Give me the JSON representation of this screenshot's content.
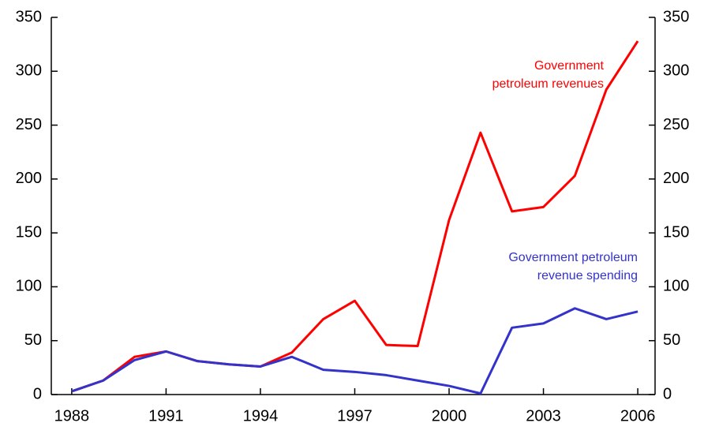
{
  "chart_data": {
    "type": "line",
    "x": [
      1988,
      1989,
      1990,
      1991,
      1992,
      1993,
      1994,
      1995,
      1996,
      1997,
      1998,
      1999,
      2000,
      2001,
      2002,
      2003,
      2004,
      2005,
      2006
    ],
    "series": [
      {
        "name": "Government petroleum revenues",
        "color": "#ff0000",
        "values": [
          3,
          13,
          35,
          40,
          31,
          28,
          26,
          39,
          70,
          87,
          46,
          45,
          162,
          243,
          170,
          174,
          203,
          283,
          328
        ]
      },
      {
        "name": "Government petroleum revenue spending",
        "color": "#3333cc",
        "values": [
          3,
          13,
          32,
          40,
          31,
          28,
          26,
          35,
          23,
          21,
          18,
          13,
          8,
          1,
          62,
          66,
          80,
          70,
          77
        ]
      }
    ],
    "annotations": [
      {
        "lines": [
          "Government",
          "petroleum revenues"
        ],
        "series": 0
      },
      {
        "lines": [
          "Government petroleum",
          "revenue spending"
        ],
        "series": 1
      }
    ],
    "xlim": [
      1987.35,
      2006.55
    ],
    "xticks": [
      1988,
      1991,
      1994,
      1997,
      2000,
      2003,
      2006
    ],
    "ylim": [
      0,
      350
    ],
    "yticks": [
      0,
      50,
      100,
      150,
      200,
      250,
      300,
      350
    ],
    "y2lim": [
      0,
      350
    ],
    "y2ticks": [
      0,
      50,
      100,
      150,
      200,
      250,
      300,
      350
    ],
    "grid": false
  }
}
